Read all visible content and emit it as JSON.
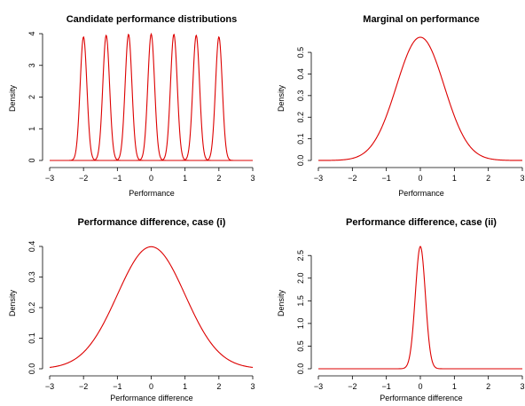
{
  "chart_data": [
    {
      "type": "line",
      "title": "Candidate performance distributions",
      "xlabel": "Performance",
      "ylabel": "Density",
      "xlim": [
        -3,
        3
      ],
      "ylim": [
        0,
        4
      ],
      "x_ticks": [
        -3,
        -2,
        -1,
        0,
        1,
        2,
        3
      ],
      "y_ticks": [
        0,
        1,
        2,
        3,
        4
      ],
      "grid": false,
      "legend": "none",
      "line_color": "#dd0000",
      "series": [
        {
          "peak_x": -2.0,
          "peak_y": 3.9,
          "sd": 0.1
        },
        {
          "peak_x": -1.33,
          "peak_y": 3.95,
          "sd": 0.1
        },
        {
          "peak_x": -0.67,
          "peak_y": 3.98,
          "sd": 0.1
        },
        {
          "peak_x": 0.0,
          "peak_y": 3.99,
          "sd": 0.1
        },
        {
          "peak_x": 0.67,
          "peak_y": 3.98,
          "sd": 0.1
        },
        {
          "peak_x": 1.33,
          "peak_y": 3.95,
          "sd": 0.1
        },
        {
          "peak_x": 2.0,
          "peak_y": 3.9,
          "sd": 0.1
        }
      ]
    },
    {
      "type": "line",
      "title": "Marginal on performance",
      "xlabel": "Performance",
      "ylabel": "Density",
      "xlim": [
        -3,
        3
      ],
      "ylim": [
        0,
        0.57
      ],
      "x_ticks": [
        -3,
        -2,
        -1,
        0,
        1,
        2,
        3
      ],
      "y_ticks": [
        0.0,
        0.1,
        0.2,
        0.3,
        0.4,
        0.5
      ],
      "grid": false,
      "legend": "none",
      "line_color": "#dd0000",
      "series": [
        {
          "peak_x": 0,
          "peak_y": 0.57,
          "sd": 0.7
        }
      ]
    },
    {
      "type": "line",
      "title": "Performance difference, case (i)",
      "xlabel": "Performance difference",
      "ylabel": "Density",
      "xlim": [
        -3,
        3
      ],
      "ylim": [
        0,
        0.4
      ],
      "x_ticks": [
        -3,
        -2,
        -1,
        0,
        1,
        2,
        3
      ],
      "y_ticks": [
        0.0,
        0.1,
        0.2,
        0.3,
        0.4
      ],
      "grid": false,
      "legend": "none",
      "line_color": "#dd0000",
      "series": [
        {
          "peak_x": 0,
          "peak_y": 0.399,
          "sd": 1.0
        }
      ]
    },
    {
      "type": "line",
      "title": "Performance difference, case (ii)",
      "xlabel": "Performance difference",
      "ylabel": "Density",
      "xlim": [
        -3,
        3
      ],
      "ylim": [
        0,
        2.7
      ],
      "x_ticks": [
        -3,
        -2,
        -1,
        0,
        1,
        2,
        3
      ],
      "y_ticks": [
        0.0,
        0.5,
        1.0,
        1.5,
        2.0,
        2.5
      ],
      "grid": false,
      "legend": "none",
      "line_color": "#dd0000",
      "series": [
        {
          "peak_x": 0,
          "peak_y": 2.7,
          "sd": 0.148
        }
      ]
    }
  ]
}
